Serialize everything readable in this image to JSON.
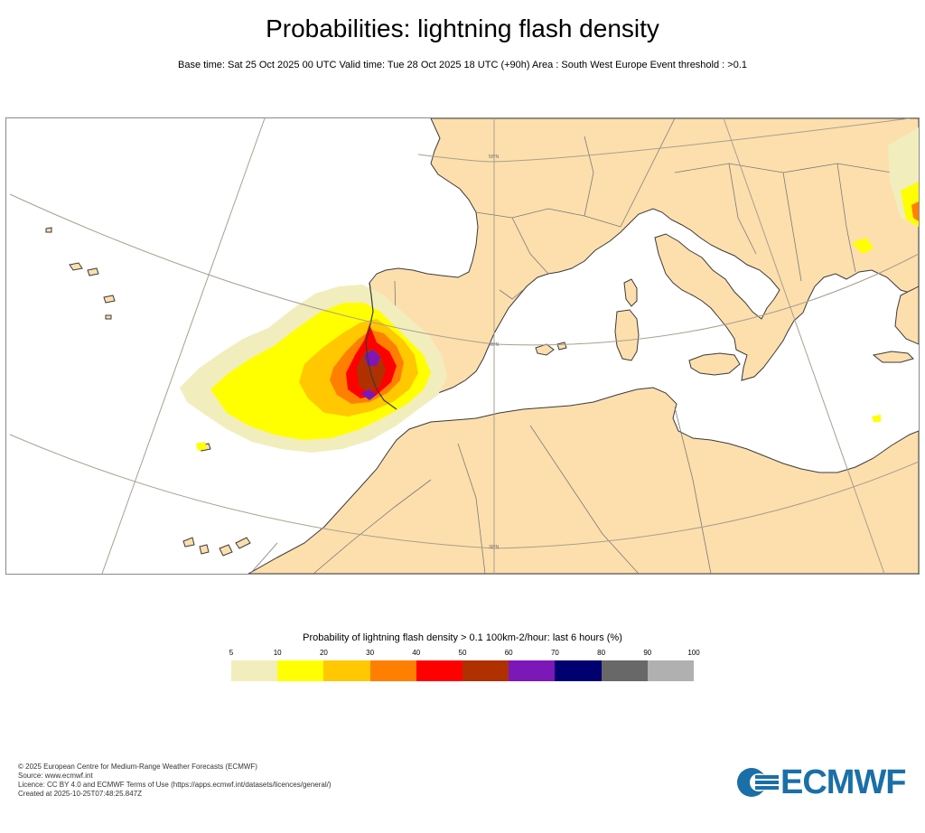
{
  "header": {
    "title": "Probabilities: lightning flash density",
    "subtitle": "Base time: Sat 25 Oct 2025 00 UTC Valid time: Tue 28 Oct 2025 18 UTC (+90h) Area : South West Europe Event threshold : >0.1"
  },
  "map": {
    "graticule_labels": [
      "50°N",
      "40°N",
      "30°N"
    ],
    "colors": {
      "land": "#fddfad",
      "sea": "#ffffff",
      "coast": "#3a3a3a",
      "border": "#7a7a7a",
      "graticule": "#a89f8f"
    }
  },
  "legend": {
    "title": "Probability of lightning flash density > 0.1 100km-2/hour: last 6 hours (%)",
    "ticks": [
      "5",
      "10",
      "20",
      "30",
      "40",
      "50",
      "60",
      "70",
      "80",
      "90",
      "100"
    ],
    "colors": [
      "#f2edbc",
      "#ffff00",
      "#ffc800",
      "#ff8000",
      "#ff0000",
      "#b03000",
      "#7c17b8",
      "#000070",
      "#686868",
      "#b0b0b0"
    ]
  },
  "footer": {
    "lines": [
      "© 2025 European Centre for Medium-Range Weather Forecasts (ECMWF)",
      "Source: www.ecmwf.int",
      "Licence: CC BY 4.0 and ECMWF Terms of Use (https://apps.ecmwf.int/datasets/licences/general/)",
      "Created at 2025-10-25T07:48:25.847Z"
    ]
  },
  "logo": {
    "text": "ECMWF",
    "icon": "ecmwf-logo-icon"
  }
}
